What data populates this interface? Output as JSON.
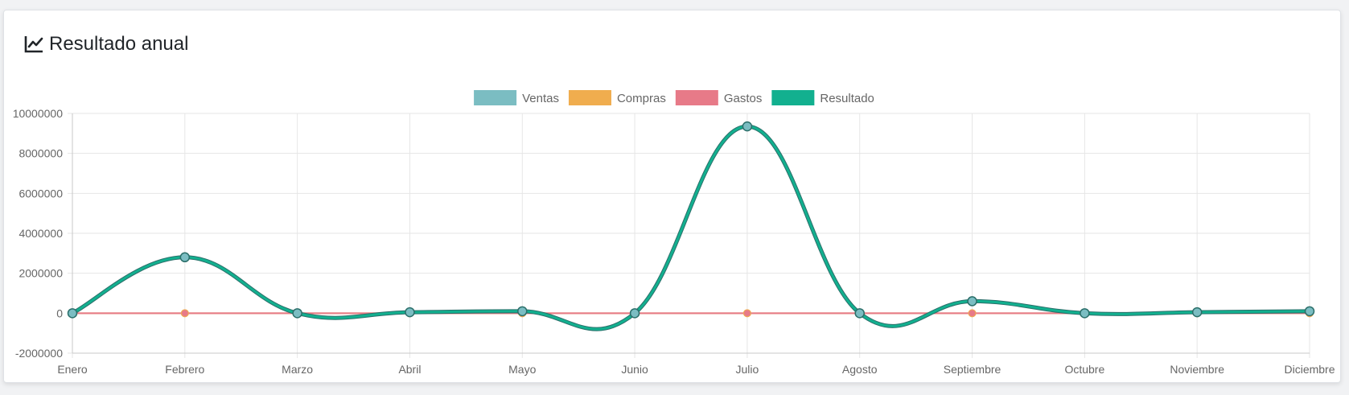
{
  "card": {
    "title": "Resultado anual",
    "icon": "line-chart-icon"
  },
  "chart_data": {
    "type": "line",
    "title": "",
    "xlabel": "",
    "ylabel": "",
    "categories": [
      "Enero",
      "Febrero",
      "Marzo",
      "Abril",
      "Mayo",
      "Junio",
      "Julio",
      "Agosto",
      "Septiembre",
      "Octubre",
      "Noviembre",
      "Diciembre"
    ],
    "ylim": [
      -2000000,
      10000000
    ],
    "yticks": [
      10000000,
      8000000,
      6000000,
      4000000,
      2000000,
      0,
      -2000000
    ],
    "ytick_labels": [
      "10000000",
      "8000000",
      "6000000",
      "4000000",
      "2000000",
      "0",
      "-2000000"
    ],
    "grid": true,
    "legend_position": "top",
    "smooth": true,
    "series": [
      {
        "name": "Ventas",
        "color": "#7bbdc2",
        "values": [
          0,
          2800000,
          0,
          50000,
          100000,
          0,
          9350000,
          0,
          600000,
          0,
          50000,
          100000
        ]
      },
      {
        "name": "Compras",
        "color": "#f0ad4e",
        "values": [
          0,
          0,
          0,
          0,
          0,
          0,
          0,
          0,
          0,
          0,
          0,
          0
        ]
      },
      {
        "name": "Gastos",
        "color": "#e77a88",
        "values": [
          0,
          0,
          0,
          0,
          0,
          0,
          0,
          0,
          0,
          0,
          0,
          0
        ]
      },
      {
        "name": "Resultado",
        "color": "#12b08f",
        "values": [
          0,
          2800000,
          0,
          50000,
          100000,
          0,
          9350000,
          0,
          600000,
          0,
          50000,
          100000
        ]
      }
    ]
  }
}
